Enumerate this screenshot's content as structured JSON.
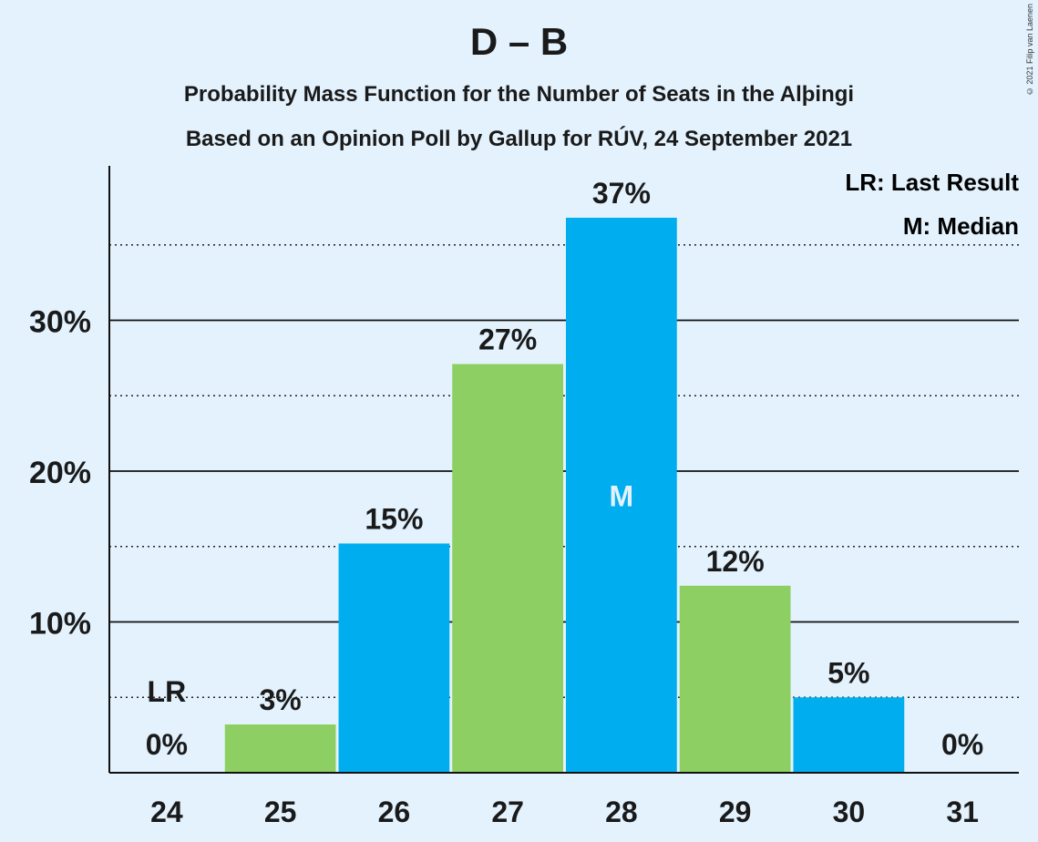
{
  "header": {
    "title": "D – B",
    "subtitle1": "Probability Mass Function for the Number of Seats in the Alþingi",
    "subtitle2": "Based on an Opinion Poll by Gallup for RÚV, 24 September 2021",
    "copyright": "© 2021 Filip van Laenen"
  },
  "legend": {
    "last_result": "LR: Last Result",
    "median": "M: Median"
  },
  "colors": {
    "blue": "#00aeef",
    "green": "#8dcf62",
    "background": "#e3f2fd"
  },
  "chart_data": {
    "type": "bar",
    "title": "D – B",
    "categories": [
      "24",
      "25",
      "26",
      "27",
      "28",
      "29",
      "30",
      "31"
    ],
    "values": [
      0,
      3.2,
      15.2,
      27.1,
      36.8,
      12.4,
      5.0,
      0
    ],
    "labels": [
      "0%",
      "3%",
      "15%",
      "27%",
      "37%",
      "12%",
      "5%",
      "0%"
    ],
    "bar_colors": [
      "blue",
      "green",
      "blue",
      "green",
      "blue",
      "green",
      "blue",
      "green"
    ],
    "ylim": [
      0,
      40
    ],
    "yticks": [
      10,
      20,
      30
    ],
    "ytick_labels": [
      "10%",
      "20%",
      "30%"
    ],
    "minor_gridlines": [
      5,
      15,
      25,
      35
    ],
    "last_result_category": "24",
    "last_result_marker": "LR",
    "median_category": "28",
    "median_marker": "M",
    "legend_position": "top-right"
  }
}
